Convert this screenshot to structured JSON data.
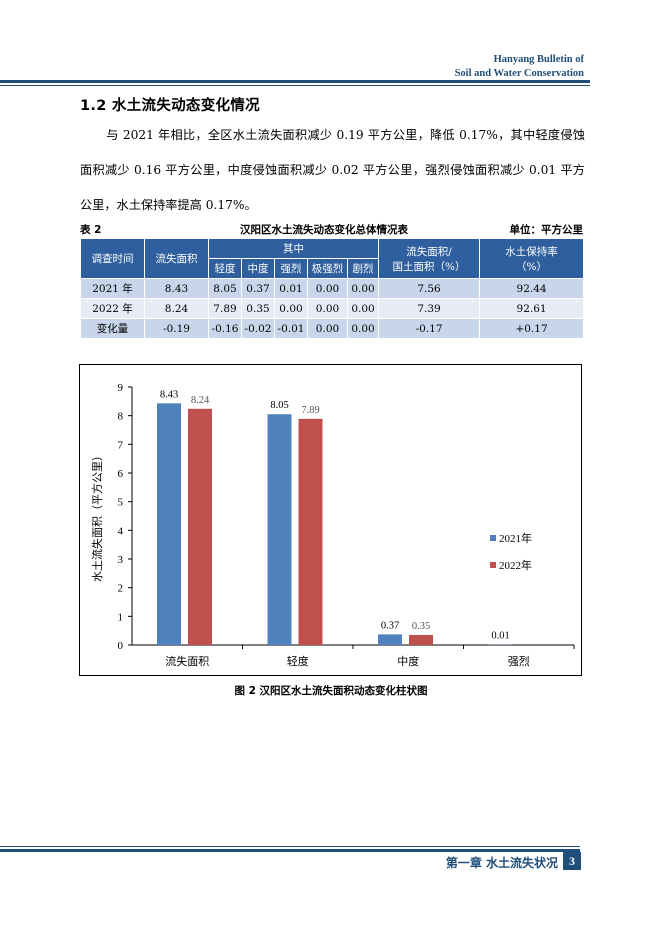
{
  "header": {
    "line1": "Hanyang  Bulletin of",
    "line2": "Soil and Water Conservation"
  },
  "section": {
    "heading": "1.2  水土流失动态变化情况",
    "paragraph": "与 2021 年相比，全区水土流失面积减少 0.19 平方公里，降低 0.17%，其中轻度侵蚀面积减少 0.16 平方公里，中度侵蚀面积减少 0.02 平方公里，强烈侵蚀面积减少 0.01 平方公里，水土保持率提高 0.17%。"
  },
  "table": {
    "label": "表 2",
    "title": "汉阳区水土流失动态变化总体情况表",
    "unit": "单位：平方公里",
    "headers": {
      "time": "调查时间",
      "area": "流失面积",
      "group": "其中",
      "sub": [
        "轻度",
        "中度",
        "强烈",
        "极强烈",
        "剧烈"
      ],
      "ratio_line1": "流失面积/",
      "ratio_line2": "国土面积（%）",
      "retention_line1": "水土保持率",
      "retention_line2": "（%）"
    },
    "rows": [
      {
        "time": "2021 年",
        "area": "8.43",
        "mild": "8.05",
        "moderate": "0.37",
        "strong": "0.01",
        "very_strong": "0.00",
        "severe": "0.00",
        "ratio": "7.56",
        "retention": "92.44"
      },
      {
        "time": "2022 年",
        "area": "8.24",
        "mild": "7.89",
        "moderate": "0.35",
        "strong": "0.00",
        "very_strong": "0.00",
        "severe": "0.00",
        "ratio": "7.39",
        "retention": "92.61"
      },
      {
        "time": "变化量",
        "area": "-0.19",
        "mild": "-0.16",
        "moderate": "-0.02",
        "strong": "-0.01",
        "very_strong": "0.00",
        "severe": "0.00",
        "ratio": "-0.17",
        "retention": "+0.17"
      }
    ]
  },
  "chart_data": {
    "type": "bar",
    "categories": [
      "流失面积",
      "轻度",
      "中度",
      "强烈"
    ],
    "series": [
      {
        "name": "2021年",
        "values": [
          8.43,
          8.05,
          0.37,
          0.01
        ],
        "labels": [
          "8.43",
          "8.05",
          "0.37",
          "0.01"
        ],
        "color": "#4f81bd"
      },
      {
        "name": "2022年",
        "values": [
          8.24,
          7.89,
          0.35,
          0
        ],
        "labels": [
          "8.24",
          "7.89",
          "0.35",
          ""
        ],
        "color": "#c0504d"
      }
    ],
    "ylabel": "水土流失面积（平方公里）",
    "ylim": [
      0,
      9
    ],
    "yticks": [
      "0",
      "1",
      "2",
      "3",
      "4",
      "5",
      "6",
      "7",
      "8",
      "9"
    ],
    "legend_position": "right",
    "grid": false
  },
  "figure": {
    "caption": "图 2    汉阳区水土流失面积动态变化柱状图"
  },
  "footer": {
    "chapter": "第一章    水土流失状况",
    "page": "3"
  }
}
